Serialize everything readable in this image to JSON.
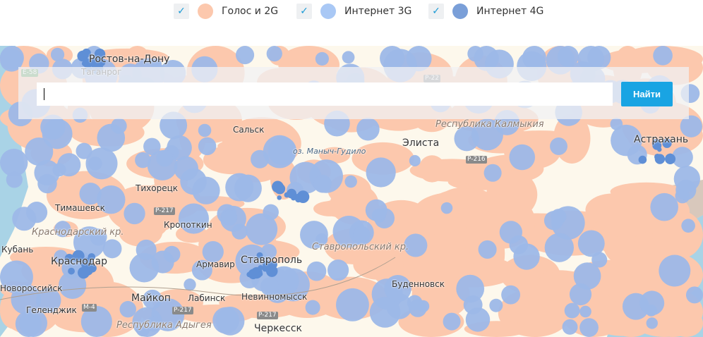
{
  "legend": [
    {
      "label": "Голос и 2G",
      "checked": true,
      "color": "#fcc8ad"
    },
    {
      "label": "Интернет 3G",
      "checked": true,
      "color": "#a9c8f5"
    },
    {
      "label": "Интернет 4G",
      "checked": true,
      "color": "#7a9fd8"
    }
  ],
  "search": {
    "value": "",
    "button": "Найти"
  },
  "colors": {
    "voice": "#fcc8ad",
    "g3": "#9db8e8",
    "g4": "#5f8fd6",
    "sea": "#a9d3e6",
    "land": "#fdf8ec",
    "mountains": "#c8b4a8"
  },
  "map": {
    "cities": [
      {
        "name": "Ростов-на-Дону",
        "big": true
      },
      {
        "name": "Таганрог"
      },
      {
        "name": "Сальск"
      },
      {
        "name": "Элиста",
        "big": true
      },
      {
        "name": "Астрахань",
        "big": true
      },
      {
        "name": "Тихорецк"
      },
      {
        "name": "Тимашевск"
      },
      {
        "name": "Кропоткин"
      },
      {
        "name": "Краснодар",
        "big": true
      },
      {
        "name": "Армавир"
      },
      {
        "name": "Ставрополь",
        "big": true
      },
      {
        "name": "Буденновск"
      },
      {
        "name": "Невинномысск"
      },
      {
        "name": "Лабинск"
      },
      {
        "name": "Майкоп",
        "big": true
      },
      {
        "name": "Геленджик"
      },
      {
        "name": "Черкесск",
        "big": true
      },
      {
        "name": "Кубань"
      },
      {
        "name": "Новороссийск"
      }
    ],
    "regions": [
      "Республика Калмыкия",
      "Краснодарский кр.",
      "Ставропольский кр.",
      "Республика Адыгея"
    ],
    "lakes": [
      "оз. Маныч-Гудило"
    ],
    "roads": [
      "E-58",
      "P-217",
      "M-4",
      "P-216",
      "P-22",
      "P-217",
      "P-217"
    ]
  }
}
